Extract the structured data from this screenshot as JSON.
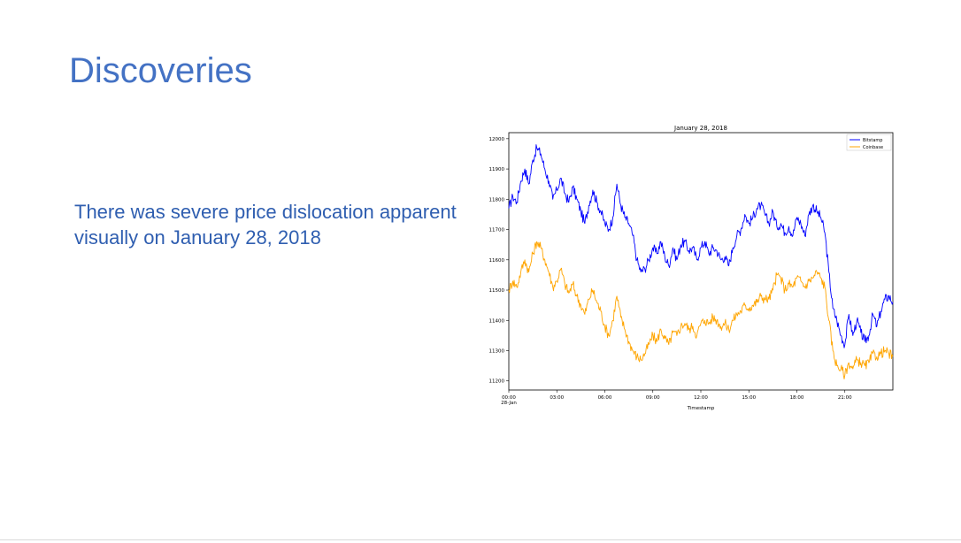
{
  "slide": {
    "title": "Discoveries",
    "body": "There was severe price dislocation apparent visually on January 28, 2018"
  },
  "colors": {
    "title": "#4472c4",
    "body": "#2f5eb0",
    "bitstamp": "#0000ff",
    "coinbase": "#ffa500"
  },
  "chart_data": {
    "type": "line",
    "title": "January 28, 2018",
    "xlabel": "Timestamp",
    "ylabel": "",
    "xlim": [
      0,
      24
    ],
    "ylim": [
      11170,
      12020
    ],
    "x_ticks": [
      0,
      3,
      6,
      9,
      12,
      15,
      18,
      21
    ],
    "x_tick_labels": [
      "00:00",
      "03:00",
      "06:00",
      "09:00",
      "12:00",
      "15:00",
      "18:00",
      "21:00"
    ],
    "x_tick_sublabel": "28-Jan",
    "y_ticks": [
      11200,
      11300,
      11400,
      11500,
      11600,
      11700,
      11800,
      11900,
      12000
    ],
    "legend_position": "top-right",
    "grid": false,
    "series": [
      {
        "name": "Bitstamp",
        "color": "#0000ff",
        "x": [
          0,
          0.25,
          0.5,
          0.75,
          1.0,
          1.25,
          1.5,
          1.75,
          2.0,
          2.25,
          2.5,
          2.75,
          3.0,
          3.25,
          3.5,
          3.75,
          4.0,
          4.25,
          4.5,
          4.75,
          5.0,
          5.25,
          5.5,
          5.75,
          6.0,
          6.25,
          6.5,
          6.75,
          7.0,
          7.25,
          7.5,
          7.75,
          8.0,
          8.25,
          8.5,
          8.75,
          9.0,
          9.25,
          9.5,
          9.75,
          10.0,
          10.25,
          10.5,
          10.75,
          11.0,
          11.25,
          11.5,
          11.75,
          12.0,
          12.25,
          12.5,
          12.75,
          13.0,
          13.25,
          13.5,
          13.75,
          14.0,
          14.25,
          14.5,
          14.75,
          15.0,
          15.25,
          15.5,
          15.75,
          16.0,
          16.25,
          16.5,
          16.75,
          17.0,
          17.25,
          17.5,
          17.75,
          18.0,
          18.25,
          18.5,
          18.75,
          19.0,
          19.25,
          19.5,
          19.75,
          20.0,
          20.25,
          20.5,
          20.75,
          21.0,
          21.25,
          21.5,
          21.75,
          22.0,
          22.25,
          22.5,
          22.75,
          23.0,
          23.25,
          23.5,
          23.75,
          24.0
        ],
        "values": [
          11770,
          11810,
          11790,
          11860,
          11900,
          11850,
          11930,
          11970,
          11950,
          11900,
          11860,
          11800,
          11830,
          11870,
          11820,
          11790,
          11840,
          11800,
          11760,
          11720,
          11780,
          11830,
          11790,
          11760,
          11720,
          11700,
          11740,
          11850,
          11780,
          11740,
          11720,
          11680,
          11600,
          11560,
          11570,
          11600,
          11640,
          11620,
          11660,
          11610,
          11580,
          11640,
          11600,
          11650,
          11660,
          11630,
          11640,
          11600,
          11640,
          11660,
          11620,
          11640,
          11630,
          11600,
          11610,
          11580,
          11640,
          11680,
          11700,
          11750,
          11720,
          11740,
          11770,
          11780,
          11750,
          11720,
          11760,
          11710,
          11720,
          11690,
          11710,
          11680,
          11740,
          11720,
          11680,
          11750,
          11780,
          11760,
          11740,
          11690,
          11560,
          11440,
          11400,
          11350,
          11320,
          11420,
          11350,
          11400,
          11360,
          11330,
          11350,
          11420,
          11380,
          11430,
          11470,
          11480,
          11460
        ]
      },
      {
        "name": "Coinbase",
        "color": "#ffa500",
        "x": [
          0,
          0.25,
          0.5,
          0.75,
          1.0,
          1.25,
          1.5,
          1.75,
          2.0,
          2.25,
          2.5,
          2.75,
          3.0,
          3.25,
          3.5,
          3.75,
          4.0,
          4.25,
          4.5,
          4.75,
          5.0,
          5.25,
          5.5,
          5.75,
          6.0,
          6.25,
          6.5,
          6.75,
          7.0,
          7.25,
          7.5,
          7.75,
          8.0,
          8.25,
          8.5,
          8.75,
          9.0,
          9.25,
          9.5,
          9.75,
          10.0,
          10.25,
          10.5,
          10.75,
          11.0,
          11.25,
          11.5,
          11.75,
          12.0,
          12.25,
          12.5,
          12.75,
          13.0,
          13.25,
          13.5,
          13.75,
          14.0,
          14.25,
          14.5,
          14.75,
          15.0,
          15.25,
          15.5,
          15.75,
          16.0,
          16.25,
          16.5,
          16.75,
          17.0,
          17.25,
          17.5,
          17.75,
          18.0,
          18.25,
          18.5,
          18.75,
          19.0,
          19.25,
          19.5,
          19.75,
          20.0,
          20.25,
          20.5,
          20.75,
          21.0,
          21.25,
          21.5,
          21.75,
          22.0,
          22.25,
          22.5,
          22.75,
          23.0,
          23.25,
          23.5,
          23.75,
          24.0
        ],
        "values": [
          11500,
          11530,
          11510,
          11560,
          11600,
          11560,
          11620,
          11660,
          11640,
          11600,
          11560,
          11510,
          11530,
          11570,
          11520,
          11490,
          11520,
          11480,
          11450,
          11420,
          11470,
          11500,
          11460,
          11430,
          11380,
          11350,
          11400,
          11480,
          11410,
          11370,
          11330,
          11300,
          11280,
          11270,
          11290,
          11320,
          11350,
          11330,
          11370,
          11340,
          11320,
          11360,
          11350,
          11380,
          11390,
          11370,
          11380,
          11350,
          11390,
          11400,
          11390,
          11410,
          11400,
          11380,
          11390,
          11370,
          11400,
          11420,
          11430,
          11450,
          11440,
          11450,
          11460,
          11480,
          11470,
          11470,
          11500,
          11550,
          11540,
          11500,
          11520,
          11510,
          11540,
          11530,
          11510,
          11530,
          11540,
          11560,
          11540,
          11510,
          11400,
          11300,
          11250,
          11240,
          11220,
          11260,
          11240,
          11270,
          11260,
          11250,
          11260,
          11290,
          11280,
          11290,
          11300,
          11290,
          11280
        ]
      }
    ]
  }
}
